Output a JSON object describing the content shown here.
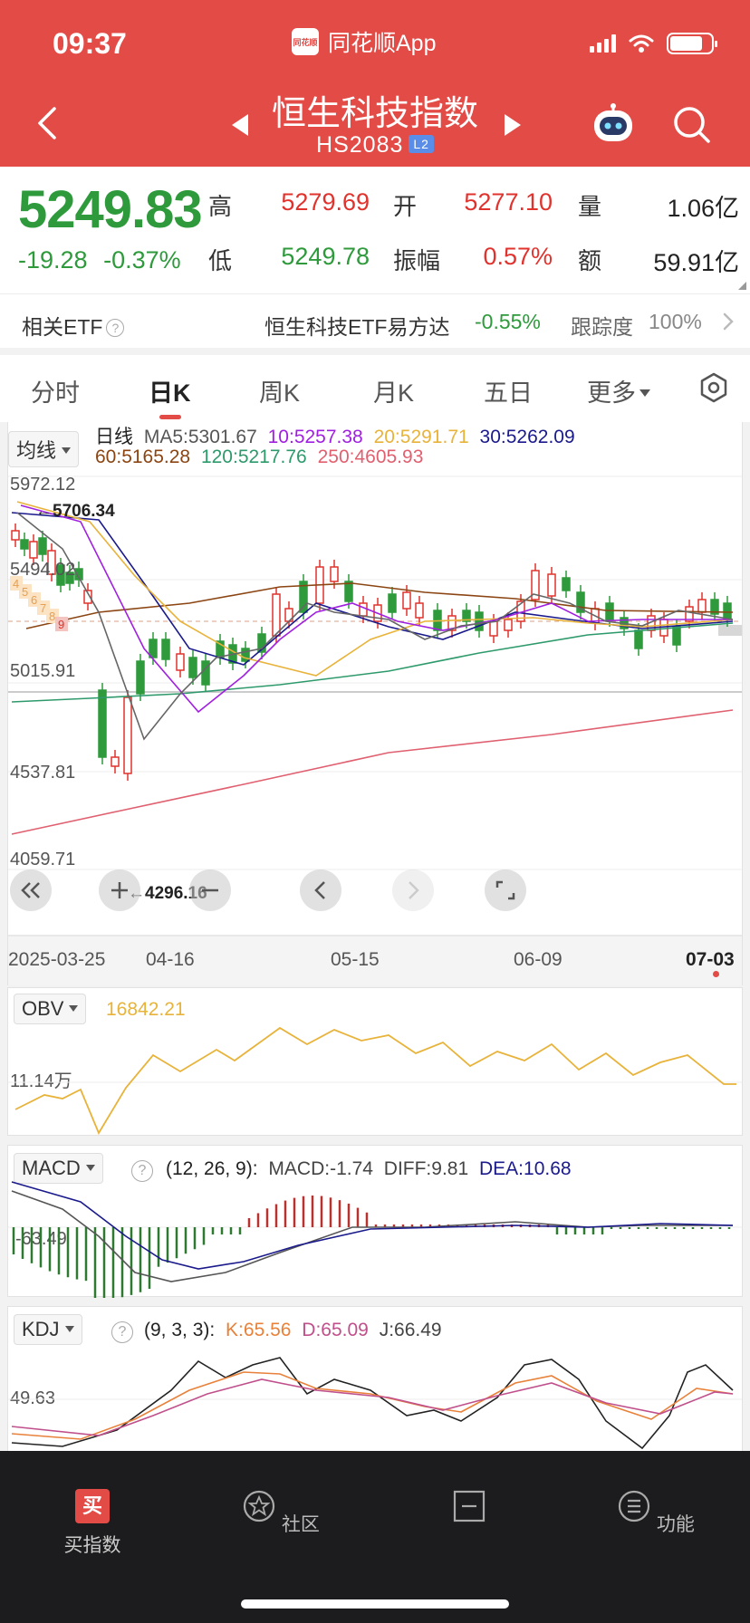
{
  "status": {
    "time": "09:37",
    "app_name": "同花顺App",
    "app_logo_text": "同花顺"
  },
  "header": {
    "title": "恒生科技指数",
    "code": "HS2083",
    "level_badge": "L2"
  },
  "quote": {
    "price": "5249.83",
    "change": "-19.28",
    "change_pct": "-0.37%",
    "high_label": "高",
    "high": "5279.69",
    "low_label": "低",
    "low": "5249.78",
    "open_label": "开",
    "open": "5277.10",
    "amplitude_label": "振幅",
    "amplitude": "0.57%",
    "volume_label": "量",
    "volume": "1.06亿",
    "amount_label": "额",
    "amount": "59.91亿"
  },
  "etf": {
    "label": "相关ETF",
    "name": "恒生科技ETF易方达",
    "change": "-0.55%",
    "track_label": "跟踪度",
    "track_value": "100%"
  },
  "tabs": [
    "分时",
    "日K",
    "周K",
    "月K",
    "五日",
    "更多"
  ],
  "active_tab": "日K",
  "colors": {
    "header_red": "#e34b47",
    "up_red": "#e0332e",
    "down_green": "#2e9a3c",
    "ma5": "#555555",
    "ma10": "#a020e0",
    "ma20": "#e8b33a",
    "ma30": "#1a1a8c",
    "ma60": "#8b4513",
    "ma120": "#2e9a6c",
    "ma250": "#e06070"
  },
  "kline": {
    "selector": "均线",
    "type_label": "日线",
    "ma": [
      {
        "label": "MA5:5301.67"
      },
      {
        "label": "10:5257.38"
      },
      {
        "label": "20:5291.71"
      },
      {
        "label": "30:5262.09"
      },
      {
        "label": "60:5165.28"
      },
      {
        "label": "120:5217.76"
      },
      {
        "label": "250:4605.93"
      }
    ],
    "y_labels": [
      "5972.12",
      "5494.02",
      "5015.91",
      "4537.81",
      "4059.71"
    ],
    "max_annotation": "5706.34",
    "min_annotation": "4296.16",
    "dates": [
      "2025-03-25",
      "04-16",
      "05-15",
      "06-09",
      "07-03"
    ],
    "td_numbers": [
      "4",
      "5",
      "6",
      "7",
      "8",
      "9"
    ]
  },
  "obv": {
    "selector": "OBV",
    "value": "16842.21",
    "y_label": "11.14万"
  },
  "macd": {
    "selector": "MACD",
    "params": "(12, 26, 9):",
    "macd": "MACD:-1.74",
    "diff": "DIFF:9.81",
    "dea": "DEA:10.68",
    "y_label": "-63.49"
  },
  "kdj": {
    "selector": "KDJ",
    "params": "(9, 3, 3):",
    "k": "K:65.56",
    "d": "D:65.09",
    "j": "J:66.49",
    "y_label": "49.63"
  },
  "tabbar": [
    {
      "label": "买指数",
      "icon": "buy-icon",
      "icon_text": "买"
    },
    {
      "label": "社区",
      "icon": "community-icon"
    },
    {
      "label": "",
      "icon": "minus-box-icon"
    },
    {
      "label": "功能",
      "icon": "menu-icon"
    }
  ]
}
